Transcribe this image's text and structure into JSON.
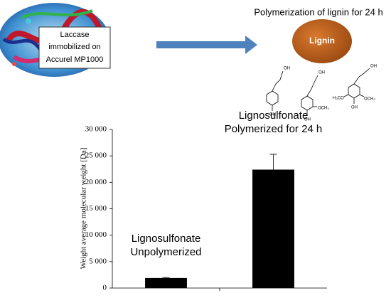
{
  "graphic": {
    "enzyme_label": [
      "Laccase",
      "immobilized on",
      "Accurel MP1000"
    ],
    "process_label": "Polymerization of lignin for 24 h",
    "lignin_label": "Lignin",
    "chem_labels": [
      "OH",
      "OH",
      "OH",
      "OCH₃",
      "OH",
      "OH",
      "H₃CO",
      "OCH₃",
      "OH"
    ]
  },
  "chart_data": {
    "type": "bar",
    "ylabel": "Weight average molecular weight [Da]",
    "categories": [
      null,
      null
    ],
    "values": [
      1900,
      22400
    ],
    "errors": [
      100,
      2900
    ],
    "color": "#000000",
    "annotations": [
      [
        "Lignosulfonate",
        "Unpolymerized"
      ],
      [
        "Lignosulfonate",
        "Polymerized for 24 h"
      ]
    ],
    "ylim": [
      0,
      30000
    ],
    "yticks": [
      0,
      {
        "value": 5000,
        "label": "5 000"
      },
      {
        "value": 10000,
        "label": "10 000"
      },
      {
        "value": 15000,
        "label": "15 000"
      },
      {
        "value": 20000,
        "label": "20 000"
      },
      {
        "value": 25000,
        "label": "25 000"
      },
      {
        "value": 30000,
        "label": "30 000"
      }
    ],
    "grid": false
  }
}
